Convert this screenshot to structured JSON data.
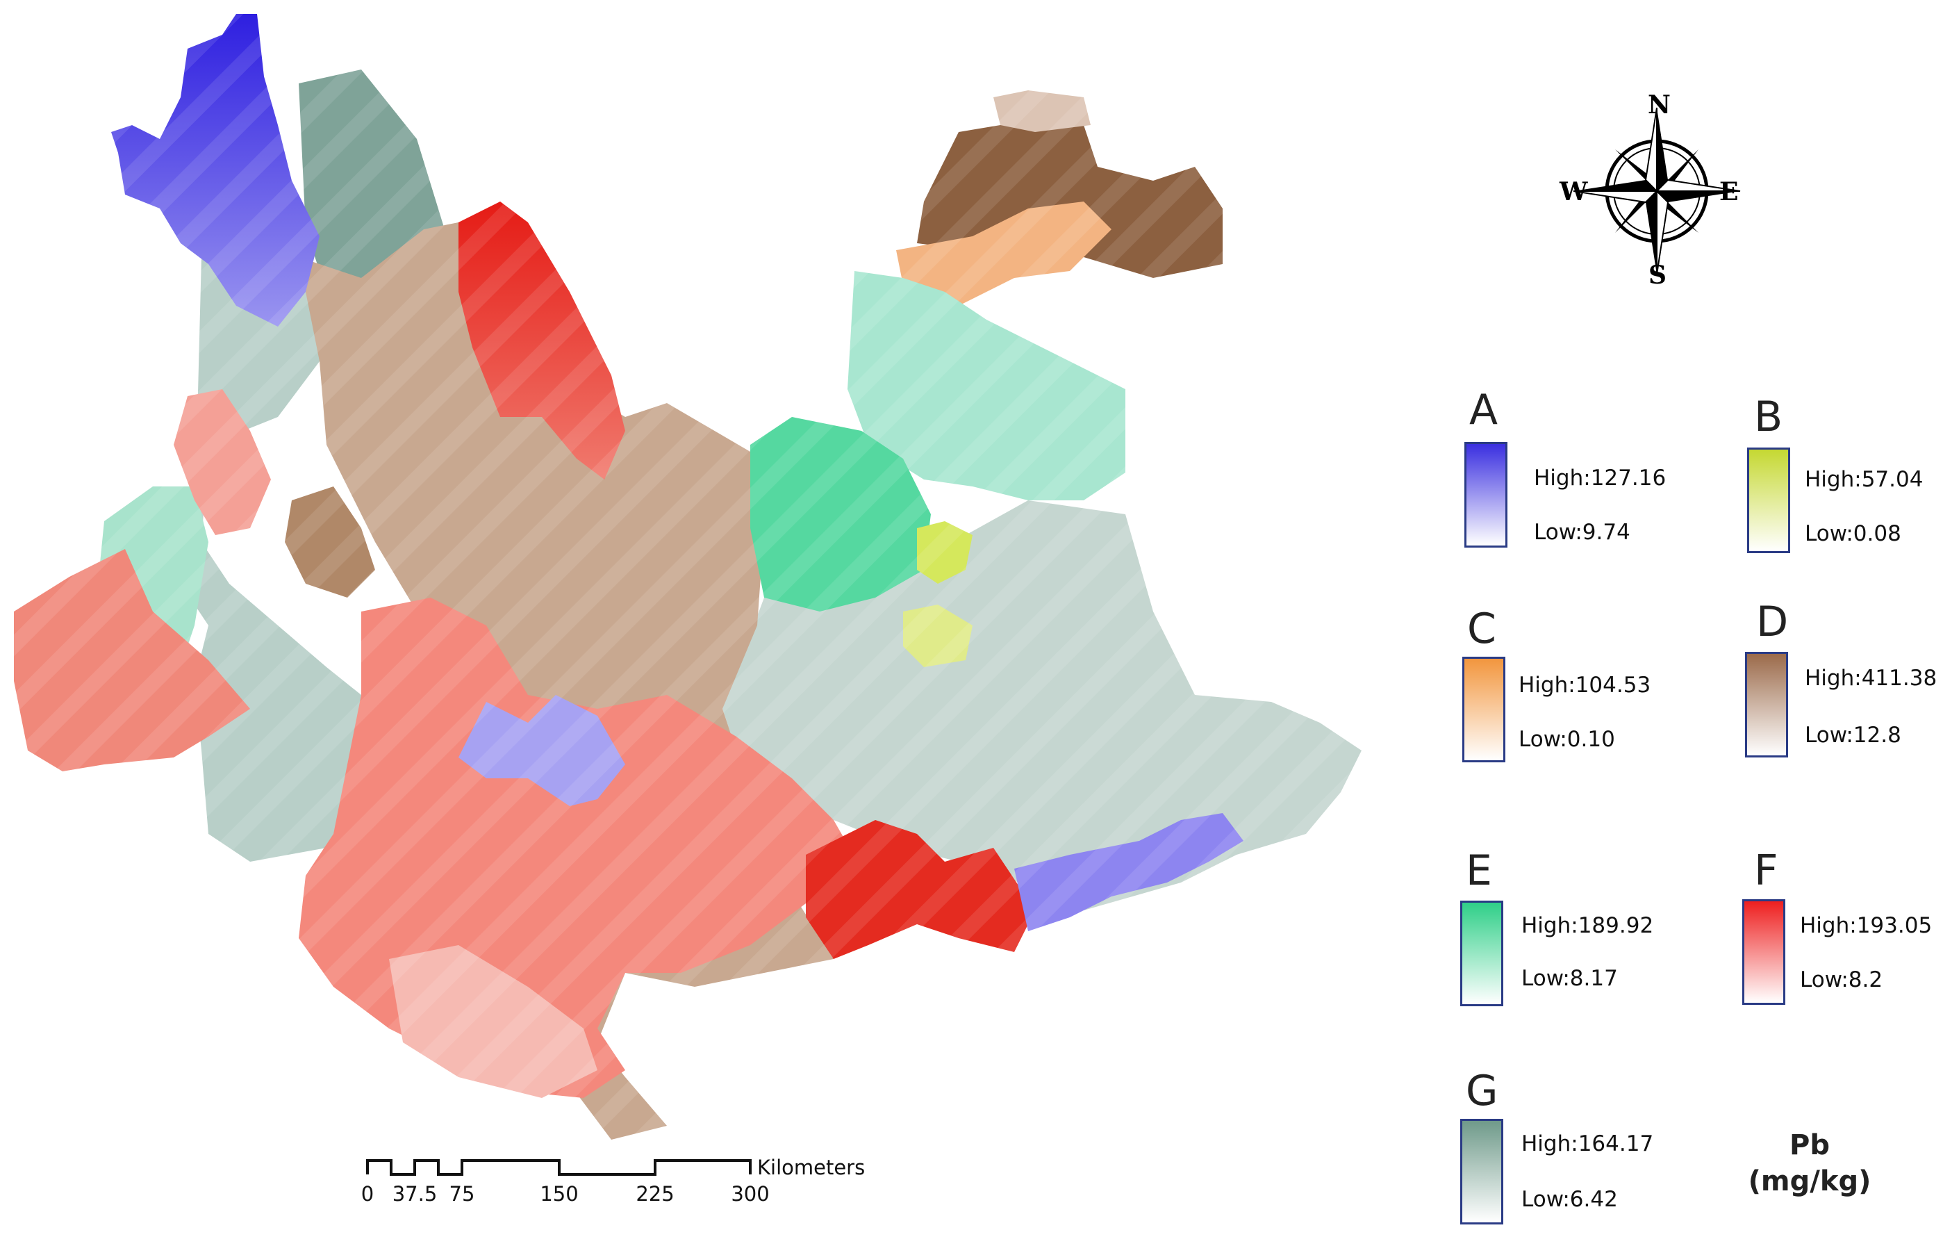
{
  "variable": "Pb",
  "unit": "(mg/kg)",
  "compass": {
    "n": "N",
    "s": "S",
    "e": "E",
    "w": "W",
    "icon": "compass-rose-icon"
  },
  "scale_bar": {
    "unit": "Kilometers",
    "ticks": [
      "0",
      "37.5",
      "75",
      "150",
      "225",
      "300"
    ]
  },
  "legend": [
    {
      "id": "A",
      "high": "High:127.16",
      "low": "Low:9.74",
      "color": "#3a2fe0"
    },
    {
      "id": "B",
      "high": "High:57.04",
      "low": "Low:0.08",
      "color": "#c5d832"
    },
    {
      "id": "C",
      "high": "High:104.53",
      "low": "Low:0.10",
      "color": "#f2963e"
    },
    {
      "id": "D",
      "high": "High:411.38",
      "low": "Low:12.8",
      "color": "#9b6a4a"
    },
    {
      "id": "E",
      "high": "High:189.92",
      "low": "Low:8.17",
      "color": "#2fcf88"
    },
    {
      "id": "F",
      "high": "High:193.05",
      "low": "Low:8.2",
      "color": "#ee1f1f"
    },
    {
      "id": "G",
      "high": "High:164.17",
      "low": "Low:6.42",
      "color": "#6f9a8a"
    }
  ]
}
